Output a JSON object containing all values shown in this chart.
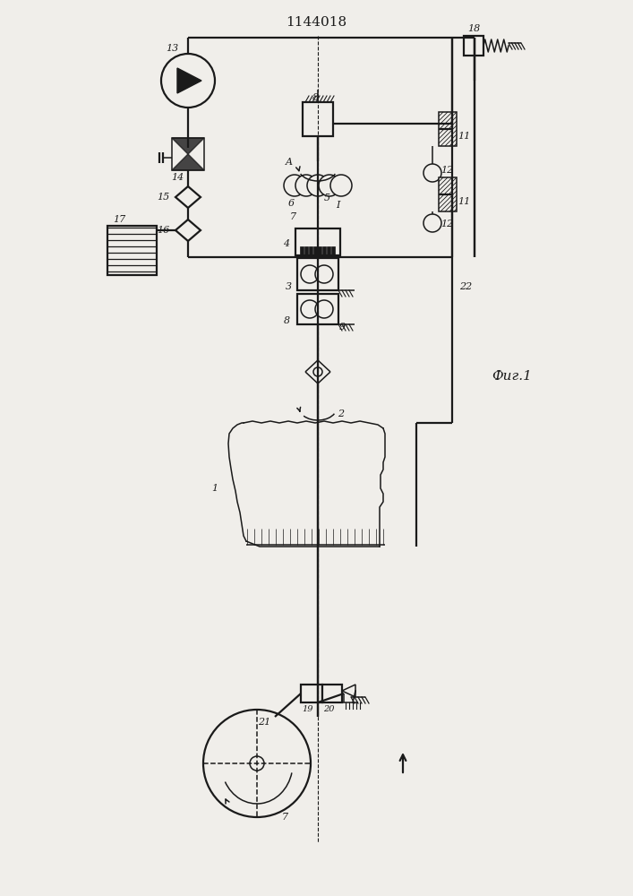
{
  "title": "1144018",
  "fig_label": "Фиг.1",
  "bg": "#f0eeea",
  "lc": "#1a1a1a",
  "lw": 1.1,
  "lw2": 1.6,
  "fs": 8,
  "fs_title": 11
}
